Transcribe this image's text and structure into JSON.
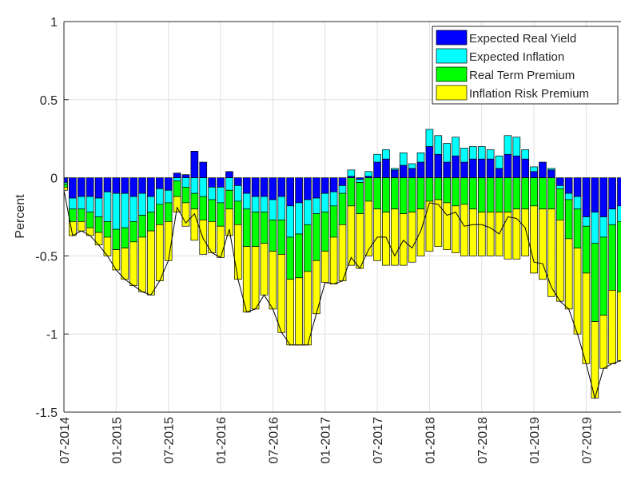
{
  "chart_data": {
    "type": "stacked-bar",
    "y_label": "Percent",
    "categories": [
      "07-2014",
      null,
      null,
      null,
      null,
      null,
      "01-2015",
      null,
      null,
      null,
      null,
      null,
      "07-2015",
      null,
      null,
      null,
      null,
      null,
      "01-2016",
      null,
      null,
      null,
      null,
      null,
      "07-2016",
      null,
      null,
      null,
      null,
      null,
      "01-2017",
      null,
      null,
      null,
      null,
      null,
      "07-2017",
      null,
      null,
      null,
      null,
      null,
      "01-2018",
      null,
      null,
      null,
      null,
      null,
      "07-2018",
      null,
      null,
      null,
      null,
      null,
      "01-2019",
      null,
      null,
      null,
      null,
      null,
      "07-2019",
      null,
      null,
      null,
      null
    ],
    "series": [
      {
        "name": "Expected Real Yield",
        "color": "#0000ff",
        "values": [
          -0.03,
          -0.13,
          -0.12,
          -0.12,
          -0.13,
          -0.09,
          -0.1,
          -0.1,
          -0.12,
          -0.1,
          -0.12,
          -0.07,
          -0.08,
          0.03,
          0.02,
          0.17,
          0.1,
          -0.06,
          -0.06,
          0.04,
          -0.05,
          -0.1,
          -0.12,
          -0.12,
          -0.14,
          -0.12,
          -0.18,
          -0.16,
          -0.14,
          -0.13,
          -0.1,
          -0.09,
          -0.05,
          0.01,
          -0.01,
          0.01,
          0.1,
          0.12,
          0.05,
          0.08,
          0.06,
          0.1,
          0.2,
          0.15,
          0.1,
          0.14,
          0.1,
          0.12,
          0.12,
          0.12,
          0.06,
          0.15,
          0.14,
          0.12,
          0.04,
          0.1,
          0.05,
          -0.05,
          -0.1,
          -0.12,
          -0.25,
          -0.22,
          -0.25,
          -0.2,
          -0.18
        ]
      },
      {
        "name": "Expected Inflation",
        "color": "#00ffff",
        "values": [
          -0.01,
          -0.07,
          -0.08,
          -0.1,
          -0.12,
          -0.19,
          -0.23,
          -0.22,
          -0.16,
          -0.14,
          -0.1,
          -0.1,
          -0.08,
          -0.02,
          -0.06,
          -0.1,
          -0.12,
          -0.08,
          -0.1,
          -0.08,
          -0.1,
          -0.1,
          -0.1,
          -0.1,
          -0.13,
          -0.15,
          -0.2,
          -0.2,
          -0.16,
          -0.1,
          -0.12,
          -0.09,
          -0.05,
          0.04,
          -0.02,
          0.03,
          0.05,
          0.06,
          0.01,
          0.08,
          0.03,
          0.06,
          0.11,
          0.12,
          0.12,
          0.12,
          0.09,
          0.08,
          0.08,
          0.06,
          0.08,
          0.12,
          0.12,
          0.06,
          0.03,
          0,
          0.01,
          -0.02,
          -0.04,
          -0.08,
          -0.06,
          -0.2,
          -0.13,
          -0.1,
          -0.1
        ]
      },
      {
        "name": "Real Term Premium",
        "color": "#00ff00",
        "values": [
          -0.02,
          -0.08,
          -0.08,
          -0.1,
          -0.1,
          -0.1,
          -0.13,
          -0.13,
          -0.13,
          -0.14,
          -0.12,
          -0.13,
          -0.12,
          -0.1,
          -0.1,
          -0.1,
          -0.15,
          -0.14,
          -0.15,
          -0.12,
          -0.15,
          -0.24,
          -0.22,
          -0.2,
          -0.2,
          -0.22,
          -0.27,
          -0.28,
          -0.3,
          -0.3,
          -0.25,
          -0.2,
          -0.2,
          -0.18,
          -0.2,
          -0.15,
          -0.2,
          -0.22,
          -0.2,
          -0.23,
          -0.22,
          -0.2,
          -0.15,
          -0.14,
          -0.16,
          -0.18,
          -0.17,
          -0.2,
          -0.22,
          -0.22,
          -0.22,
          -0.22,
          -0.2,
          -0.2,
          -0.18,
          -0.2,
          -0.2,
          -0.2,
          -0.25,
          -0.25,
          -0.3,
          -0.5,
          -0.5,
          -0.42,
          -0.45
        ]
      },
      {
        "name": "Inflation Risk Premium",
        "color": "#ffff00",
        "values": [
          -0.02,
          -0.09,
          -0.06,
          -0.05,
          -0.08,
          -0.12,
          -0.13,
          -0.2,
          -0.28,
          -0.35,
          -0.41,
          -0.36,
          -0.25,
          -0.1,
          -0.15,
          -0.2,
          -0.22,
          -0.2,
          -0.2,
          -0.17,
          -0.35,
          -0.42,
          -0.4,
          -0.33,
          -0.37,
          -0.5,
          -0.42,
          -0.43,
          -0.47,
          -0.34,
          -0.2,
          -0.3,
          -0.36,
          -0.38,
          -0.35,
          -0.35,
          -0.33,
          -0.34,
          -0.36,
          -0.33,
          -0.32,
          -0.3,
          -0.32,
          -0.3,
          -0.3,
          -0.3,
          -0.33,
          -0.3,
          -0.28,
          -0.28,
          -0.28,
          -0.3,
          -0.32,
          -0.3,
          -0.43,
          -0.45,
          -0.56,
          -0.52,
          -0.45,
          -0.55,
          -0.58,
          -0.49,
          -0.34,
          -0.47,
          -0.44
        ]
      }
    ],
    "total": {
      "color": "#000000",
      "values": [
        -0.08,
        -0.37,
        -0.34,
        -0.37,
        -0.43,
        -0.5,
        -0.59,
        -0.65,
        -0.69,
        -0.73,
        -0.75,
        -0.66,
        -0.53,
        -0.19,
        -0.29,
        -0.23,
        -0.39,
        -0.48,
        -0.51,
        -0.33,
        -0.65,
        -0.86,
        -0.84,
        -0.75,
        -0.84,
        -0.99,
        -1.07,
        -1.07,
        -1.07,
        -0.87,
        -0.67,
        -0.68,
        -0.66,
        -0.51,
        -0.58,
        -0.46,
        -0.38,
        -0.38,
        -0.5,
        -0.4,
        -0.45,
        -0.34,
        -0.16,
        -0.17,
        -0.24,
        -0.22,
        -0.31,
        -0.3,
        -0.3,
        -0.32,
        -0.36,
        -0.25,
        -0.26,
        -0.32,
        -0.54,
        -0.55,
        -0.7,
        -0.79,
        -0.84,
        -1,
        -1.19,
        -1.41,
        -1.22,
        -1.19,
        -1.17
      ]
    },
    "ylim": [
      -1.5,
      1
    ],
    "yticks": [
      -1.5,
      -1,
      -0.5,
      0,
      0.5,
      1
    ],
    "grid": true,
    "legend": "top-right"
  }
}
